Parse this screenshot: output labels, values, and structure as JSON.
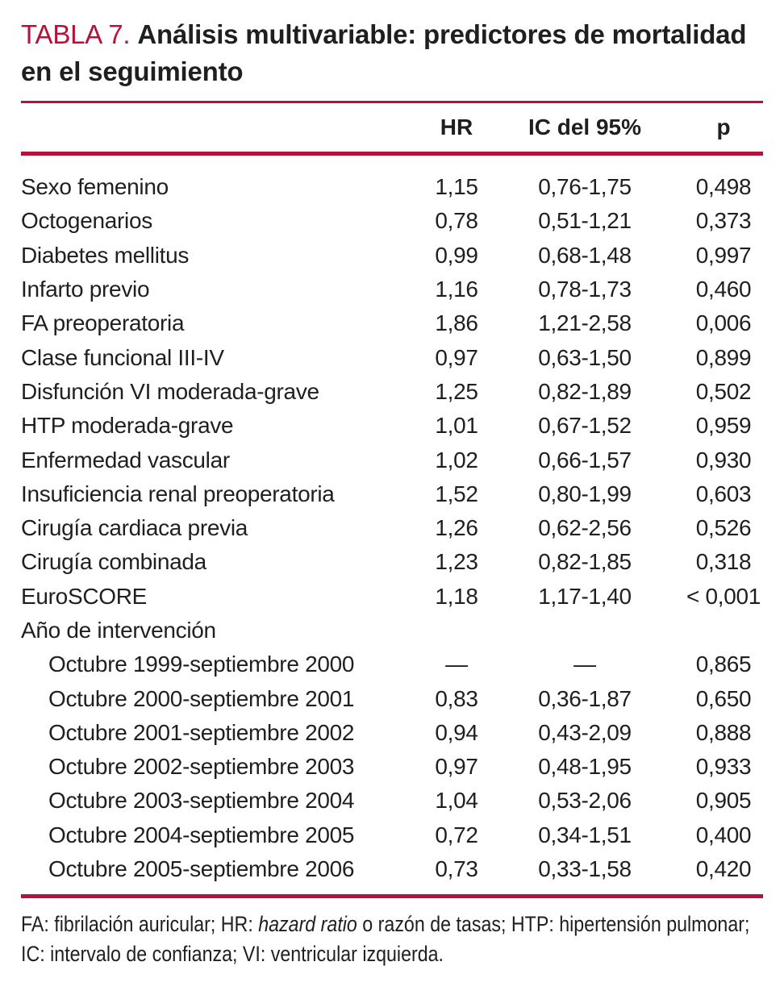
{
  "colors": {
    "accent": "#b5123a",
    "text": "#1f1f1f"
  },
  "table": {
    "label": "TABLA 7.",
    "title": "Análisis multivariable: predictores de mortalidad en el seguimiento",
    "columns": [
      "HR",
      "IC del 95%",
      "p"
    ],
    "rows": [
      {
        "name": "Sexo femenino",
        "hr": "1,15",
        "ci": "0,76-1,75",
        "p": "0,498",
        "indent": false
      },
      {
        "name": "Octogenarios",
        "hr": "0,78",
        "ci": "0,51-1,21",
        "p": "0,373",
        "indent": false
      },
      {
        "name": "Diabetes mellitus",
        "hr": "0,99",
        "ci": "0,68-1,48",
        "p": "0,997",
        "indent": false
      },
      {
        "name": "Infarto previo",
        "hr": "1,16",
        "ci": "0,78-1,73",
        "p": "0,460",
        "indent": false
      },
      {
        "name": "FA preoperatoria",
        "hr": "1,86",
        "ci": "1,21-2,58",
        "p": "0,006",
        "indent": false
      },
      {
        "name": "Clase funcional III-IV",
        "hr": "0,97",
        "ci": "0,63-1,50",
        "p": "0,899",
        "indent": false
      },
      {
        "name": "Disfunción VI moderada-grave",
        "hr": "1,25",
        "ci": "0,82-1,89",
        "p": "0,502",
        "indent": false
      },
      {
        "name": "HTP moderada-grave",
        "hr": "1,01",
        "ci": "0,67-1,52",
        "p": "0,959",
        "indent": false
      },
      {
        "name": "Enfermedad vascular",
        "hr": "1,02",
        "ci": "0,66-1,57",
        "p": "0,930",
        "indent": false
      },
      {
        "name": "Insuficiencia renal preoperatoria",
        "hr": "1,52",
        "ci": "0,80-1,99",
        "p": "0,603",
        "indent": false
      },
      {
        "name": "Cirugía cardiaca previa",
        "hr": "1,26",
        "ci": "0,62-2,56",
        "p": "0,526",
        "indent": false
      },
      {
        "name": "Cirugía combinada",
        "hr": "1,23",
        "ci": "0,82-1,85",
        "p": "0,318",
        "indent": false
      },
      {
        "name": "EuroSCORE",
        "hr": "1,18",
        "ci": "1,17-1,40",
        "p": "< 0,001",
        "indent": false
      },
      {
        "name": "Año de intervención",
        "hr": "",
        "ci": "",
        "p": "",
        "indent": false
      },
      {
        "name": "Octubre 1999-septiembre 2000",
        "hr": "—",
        "ci": "—",
        "p": "0,865",
        "indent": true
      },
      {
        "name": "Octubre 2000-septiembre 2001",
        "hr": "0,83",
        "ci": "0,36-1,87",
        "p": "0,650",
        "indent": true
      },
      {
        "name": "Octubre 2001-septiembre 2002",
        "hr": "0,94",
        "ci": "0,43-2,09",
        "p": "0,888",
        "indent": true
      },
      {
        "name": "Octubre 2002-septiembre 2003",
        "hr": "0,97",
        "ci": "0,48-1,95",
        "p": "0,933",
        "indent": true
      },
      {
        "name": "Octubre 2003-septiembre 2004",
        "hr": "1,04",
        "ci": "0,53-2,06",
        "p": "0,905",
        "indent": true
      },
      {
        "name": "Octubre 2004-septiembre 2005",
        "hr": "0,72",
        "ci": "0,34-1,51",
        "p": "0,400",
        "indent": true
      },
      {
        "name": "Octubre 2005-septiembre 2006",
        "hr": "0,73",
        "ci": "0,33-1,58",
        "p": "0,420",
        "indent": true
      }
    ],
    "footnote": [
      {
        "text": "FA: fibrilación auricular; HR: ",
        "italic": false
      },
      {
        "text": "hazard ratio",
        "italic": true
      },
      {
        "text": " o razón de tasas; HTP: hipertensión pulmonar; IC: intervalo de confianza; VI: ventricular izquierda.",
        "italic": false
      }
    ]
  }
}
